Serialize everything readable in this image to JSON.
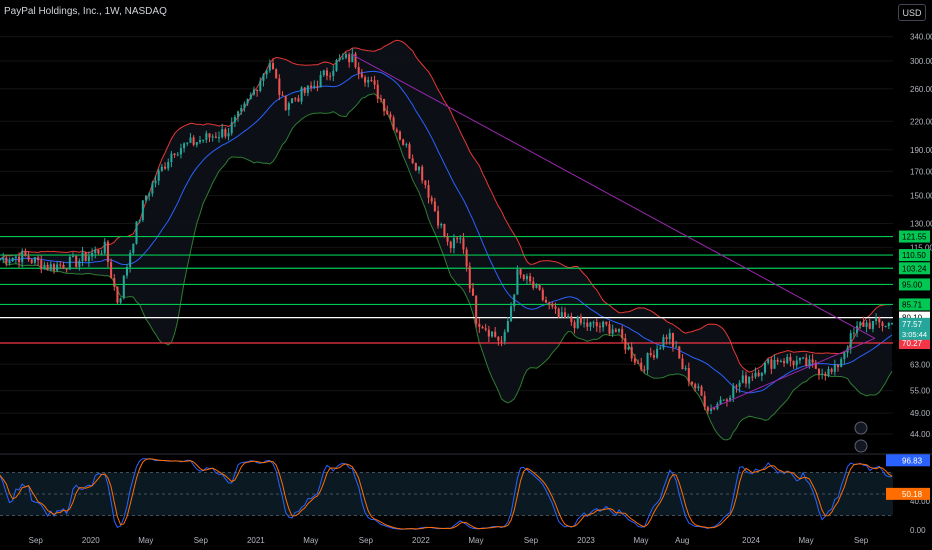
{
  "header": {
    "title": "PayPal Holdings, Inc., 1W, NASDAQ",
    "currency": "USD"
  },
  "colors": {
    "background": "#000000",
    "up": "#26a69a",
    "down": "#ef5350",
    "horizontal_lines": "#00c853",
    "resistance": "#ffffff",
    "support": "#f23645",
    "trendline": "#9c27b0",
    "bb_upper": "#e53935",
    "bb_lower": "#2e7d32",
    "bb_basis": "#2962ff",
    "stoch_k": "#2962ff",
    "stoch_d": "#ff6d00"
  },
  "chart_data": [
    {
      "type": "candlestick",
      "title": "PayPal Holdings, Inc., 1W, NASDAQ",
      "y_axis": {
        "scale": "log",
        "ticks": [
          "340.00",
          "300.00",
          "260.00",
          "220.00",
          "190.00",
          "170.00",
          "150.00",
          "130.00",
          "115.00",
          "95.00",
          "63.00",
          "55.00",
          "49.00",
          "44.00"
        ],
        "tick_values": [
          340,
          300,
          260,
          220,
          190,
          170,
          150,
          130,
          115,
          95,
          63,
          55,
          49,
          44
        ],
        "range": [
          40,
          395
        ]
      },
      "x_axis": {
        "tick_labels": [
          "Sep",
          "2020",
          "May",
          "Sep",
          "2021",
          "May",
          "Sep",
          "2022",
          "May",
          "Sep",
          "2023",
          "May",
          "Aug",
          "2024",
          "May",
          "Sep"
        ],
        "tick_dates": [
          "2019-09",
          "2020-01",
          "2020-05",
          "2020-09",
          "2021-01",
          "2021-05",
          "2021-09",
          "2022-01",
          "2022-05",
          "2022-09",
          "2023-01",
          "2023-05",
          "2023-08",
          "2024-01",
          "2024-05",
          "2024-09"
        ]
      },
      "price_path": [
        {
          "date": "2019-06",
          "close": 108
        },
        {
          "date": "2019-08",
          "close": 110
        },
        {
          "date": "2019-10",
          "close": 104
        },
        {
          "date": "2019-12",
          "close": 107
        },
        {
          "date": "2020-02",
          "close": 115
        },
        {
          "date": "2020-03",
          "close": 86
        },
        {
          "date": "2020-04",
          "close": 118
        },
        {
          "date": "2020-05",
          "close": 150
        },
        {
          "date": "2020-07",
          "close": 190
        },
        {
          "date": "2020-09",
          "close": 200
        },
        {
          "date": "2020-11",
          "close": 210
        },
        {
          "date": "2020-12",
          "close": 230
        },
        {
          "date": "2021-02",
          "close": 300
        },
        {
          "date": "2021-03",
          "close": 240
        },
        {
          "date": "2021-05",
          "close": 260
        },
        {
          "date": "2021-07",
          "close": 300
        },
        {
          "date": "2021-08",
          "close": 305
        },
        {
          "date": "2021-10",
          "close": 250
        },
        {
          "date": "2021-12",
          "close": 190
        },
        {
          "date": "2022-01",
          "close": 170
        },
        {
          "date": "2022-03",
          "close": 115
        },
        {
          "date": "2022-04",
          "close": 120
        },
        {
          "date": "2022-05",
          "close": 80
        },
        {
          "date": "2022-07",
          "close": 70
        },
        {
          "date": "2022-08",
          "close": 100
        },
        {
          "date": "2022-09",
          "close": 95
        },
        {
          "date": "2022-11",
          "close": 80
        },
        {
          "date": "2023-01",
          "close": 77
        },
        {
          "date": "2023-03",
          "close": 76
        },
        {
          "date": "2023-05",
          "close": 62
        },
        {
          "date": "2023-07",
          "close": 74
        },
        {
          "date": "2023-08",
          "close": 62
        },
        {
          "date": "2023-10",
          "close": 50
        },
        {
          "date": "2024-01",
          "close": 60
        },
        {
          "date": "2024-03",
          "close": 65
        },
        {
          "date": "2024-05",
          "close": 63
        },
        {
          "date": "2024-07",
          "close": 60
        },
        {
          "date": "2024-08",
          "close": 70
        },
        {
          "date": "2024-09",
          "close": 77.57
        }
      ],
      "horizontal_levels": [
        {
          "value": 121.55,
          "label": "121.55",
          "color": "#00c853"
        },
        {
          "value": 110.5,
          "label": "110.50",
          "color": "#00c853"
        },
        {
          "value": 103.24,
          "label": "103.24",
          "color": "#00c853"
        },
        {
          "value": 95.0,
          "label": "95.00",
          "color": "#00c853"
        },
        {
          "value": 85.71,
          "label": "85.71",
          "color": "#00c853"
        },
        {
          "value": 80.1,
          "label": "80.10",
          "color": "#ffffff"
        },
        {
          "value": 70.27,
          "label": "70.27",
          "color": "#f23645"
        }
      ],
      "current_price": {
        "value": 77.57,
        "label": "77.57",
        "countdown": "3:05:44"
      },
      "trendlines": [
        {
          "from": {
            "date": "2021-08",
            "value": 310
          },
          "to": {
            "date": "2024-10",
            "value": 72
          }
        },
        {
          "from": {
            "date": "2023-10",
            "value": 50
          },
          "to": {
            "date": "2024-10",
            "value": 72
          }
        }
      ]
    },
    {
      "type": "line",
      "title": "Stochastic",
      "y_axis": {
        "ticks": [
          "40.00",
          "0.00"
        ],
        "tick_values": [
          40,
          0
        ],
        "range": [
          0,
          100
        ]
      },
      "bands": [
        20,
        50,
        80
      ],
      "series": [
        {
          "label": "96.83",
          "color": "#2962ff",
          "last": 96.83
        },
        {
          "label": "50.18",
          "color": "#ff6d00",
          "last": 50.18
        }
      ]
    }
  ]
}
